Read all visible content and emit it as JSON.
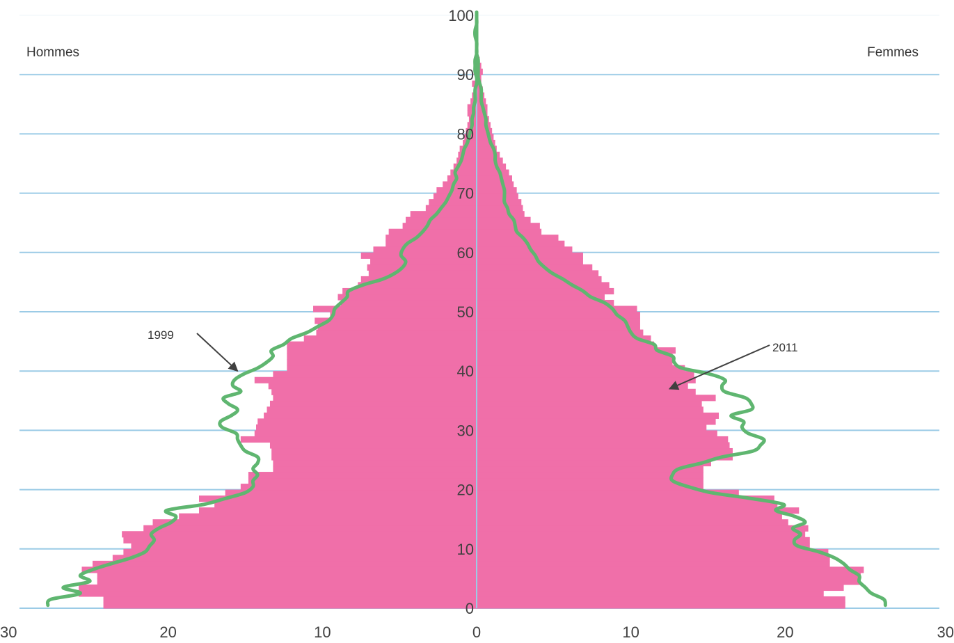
{
  "chart_data": {
    "type": "population-pyramid",
    "left_label": "Hommes",
    "right_label": "Femmes",
    "x_range": [
      -30,
      30
    ],
    "y_range": [
      0,
      100
    ],
    "x_ticks": [
      {
        "value": -30,
        "label": "30"
      },
      {
        "value": -20,
        "label": "20"
      },
      {
        "value": -10,
        "label": "10"
      },
      {
        "value": 0,
        "label": "0"
      },
      {
        "value": 10,
        "label": "10"
      },
      {
        "value": 20,
        "label": "20"
      },
      {
        "value": 30,
        "label": "30"
      }
    ],
    "y_ticks": [
      {
        "value": 0,
        "label": "0"
      },
      {
        "value": 10,
        "label": "10"
      },
      {
        "value": 20,
        "label": "20"
      },
      {
        "value": 30,
        "label": "30"
      },
      {
        "value": 40,
        "label": "40"
      },
      {
        "value": 50,
        "label": "50"
      },
      {
        "value": 60,
        "label": "60"
      },
      {
        "value": 70,
        "label": "70"
      },
      {
        "value": 80,
        "label": "80"
      },
      {
        "value": 90,
        "label": "90"
      },
      {
        "value": 100,
        "label": "100"
      }
    ],
    "grid": true,
    "annotations": [
      {
        "text": "1999",
        "arrow_to_age": 40,
        "arrow_to_value": -15.5
      },
      {
        "text": "2011",
        "arrow_to_age": 37,
        "arrow_to_value": 12.5
      }
    ],
    "bars_2011": {
      "name": "2011",
      "color": "#f06fa9",
      "ages": [
        0,
        1,
        2,
        3,
        4,
        5,
        6,
        7,
        8,
        9,
        10,
        11,
        12,
        13,
        14,
        15,
        16,
        17,
        18,
        19,
        20,
        21,
        22,
        23,
        24,
        25,
        26,
        27,
        28,
        29,
        30,
        31,
        32,
        33,
        34,
        35,
        36,
        37,
        38,
        39,
        40,
        41,
        42,
        43,
        44,
        45,
        46,
        47,
        48,
        49,
        50,
        51,
        52,
        53,
        54,
        55,
        56,
        57,
        58,
        59,
        60,
        61,
        62,
        63,
        64,
        65,
        66,
        67,
        68,
        69,
        70,
        71,
        72,
        73,
        74,
        75,
        76,
        77,
        78,
        79,
        80,
        81,
        82,
        83,
        84,
        85,
        86,
        87,
        88,
        89,
        90,
        91,
        92,
        93,
        94,
        95,
        96,
        97,
        98,
        99,
        100
      ],
      "hommes": [
        24.2,
        24.2,
        25.8,
        25.8,
        24.6,
        24.6,
        25.6,
        24.9,
        23.6,
        22.9,
        22.4,
        22.9,
        23.0,
        21.6,
        21.0,
        19.3,
        18.0,
        17.0,
        18.0,
        16.3,
        15.3,
        14.8,
        14.8,
        13.2,
        13.2,
        13.3,
        13.3,
        13.4,
        15.3,
        14.4,
        14.3,
        14.2,
        13.8,
        13.6,
        13.4,
        13.2,
        13.3,
        13.5,
        14.4,
        13.2,
        12.3,
        12.3,
        12.3,
        12.3,
        12.3,
        11.2,
        10.4,
        10.3,
        10.5,
        9.5,
        10.6,
        8.8,
        9.0,
        8.7,
        7.7,
        7.5,
        7.0,
        7.1,
        6.9,
        7.5,
        6.7,
        5.9,
        5.9,
        5.7,
        4.8,
        4.6,
        4.3,
        3.3,
        3.1,
        2.8,
        2.6,
        2.2,
        1.9,
        1.7,
        1.5,
        1.3,
        1.2,
        1.1,
        0.9,
        0.8,
        0.7,
        0.6,
        0.5,
        0.6,
        0.6,
        0.4,
        0.3,
        0.2,
        0.3,
        0.1,
        0.2,
        0.1,
        0.1,
        0.1,
        0.0,
        0.0,
        0.0,
        0.0,
        0.0,
        0.0,
        0.0
      ],
      "femmes": [
        23.9,
        23.9,
        22.5,
        23.8,
        24.9,
        24.9,
        25.1,
        22.9,
        22.9,
        22.8,
        21.6,
        21.6,
        21.3,
        21.5,
        20.2,
        19.8,
        20.9,
        19.5,
        19.3,
        17.0,
        14.7,
        14.7,
        14.7,
        14.7,
        15.2,
        16.6,
        16.6,
        16.4,
        16.3,
        15.6,
        14.9,
        15.5,
        15.7,
        14.7,
        14.6,
        15.5,
        14.2,
        13.7,
        14.2,
        14.1,
        13.5,
        12.7,
        12.7,
        12.9,
        11.5,
        11.3,
        10.8,
        10.6,
        10.6,
        10.6,
        10.4,
        8.9,
        8.3,
        8.9,
        8.6,
        8.1,
        7.9,
        7.5,
        6.9,
        6.9,
        6.2,
        5.7,
        5.3,
        4.2,
        4.1,
        3.5,
        3.1,
        3.0,
        2.9,
        2.7,
        2.6,
        2.4,
        2.3,
        2.1,
        1.9,
        1.7,
        1.5,
        1.3,
        1.2,
        1.1,
        1.0,
        0.9,
        0.8,
        0.7,
        0.7,
        0.6,
        0.5,
        0.4,
        0.3,
        0.3,
        0.4,
        0.3,
        0.2,
        0.1,
        0.1,
        0.0,
        0.0,
        0.0,
        0.0,
        0.0,
        0.0
      ]
    },
    "line_1999": {
      "name": "1999",
      "color": "#5fb670",
      "ages": [
        0,
        1,
        2,
        3,
        4,
        5,
        6,
        7,
        8,
        9,
        10,
        11,
        12,
        13,
        14,
        15,
        16,
        17,
        18,
        19,
        20,
        21,
        22,
        23,
        24,
        25,
        26,
        27,
        28,
        29,
        30,
        31,
        32,
        33,
        34,
        35,
        36,
        37,
        38,
        39,
        40,
        41,
        42,
        43,
        44,
        45,
        46,
        47,
        48,
        49,
        50,
        51,
        52,
        53,
        54,
        55,
        56,
        57,
        58,
        59,
        60,
        61,
        62,
        63,
        64,
        65,
        66,
        67,
        68,
        69,
        70,
        71,
        72,
        73,
        74,
        75,
        76,
        77,
        78,
        79,
        80,
        81,
        82,
        83,
        84,
        85,
        86,
        87,
        88,
        89,
        90,
        91,
        92,
        93,
        94,
        95,
        96,
        97,
        98,
        99,
        100
      ],
      "hommes": [
        27.8,
        27.6,
        25.7,
        26.8,
        25.1,
        25.7,
        24.9,
        23.7,
        22.4,
        21.5,
        21.2,
        20.9,
        21.1,
        20.6,
        19.8,
        19.5,
        20.1,
        17.7,
        16.3,
        15.0,
        14.5,
        14.5,
        14.2,
        14.5,
        14.2,
        14.2,
        15.0,
        15.3,
        15.5,
        15.6,
        16.5,
        16.6,
        15.9,
        15.5,
        16.1,
        16.4,
        15.3,
        15.8,
        15.7,
        15.1,
        14.2,
        13.6,
        13.2,
        13.3,
        12.5,
        12.0,
        11.0,
        10.3,
        9.6,
        9.3,
        9.2,
        8.8,
        8.4,
        8.3,
        7.4,
        6.1,
        5.3,
        4.8,
        4.6,
        4.9,
        4.8,
        4.5,
        3.9,
        3.5,
        3.2,
        3.0,
        2.6,
        2.3,
        2.0,
        1.8,
        1.6,
        1.5,
        1.3,
        1.4,
        1.2,
        1.0,
        0.9,
        0.8,
        0.6,
        0.5,
        0.4,
        0.3,
        0.3,
        0.2,
        0.2,
        0.1,
        0.1,
        0.1,
        0.0,
        0.0,
        0.1,
        0.1,
        0.1,
        0.0,
        0.0,
        0.0,
        0.1,
        0.1,
        0.0,
        0.0,
        0.0
      ],
      "femmes": [
        26.5,
        26.4,
        25.6,
        25.2,
        24.8,
        24.8,
        24.2,
        23.8,
        23.2,
        22.2,
        20.8,
        20.6,
        21.0,
        20.5,
        21.3,
        20.6,
        19.4,
        19.9,
        17.8,
        15.2,
        13.7,
        12.7,
        12.7,
        13.1,
        14.6,
        15.9,
        17.9,
        18.4,
        18.6,
        17.6,
        17.2,
        17.3,
        16.5,
        17.8,
        17.8,
        17.4,
        16.1,
        15.9,
        16.1,
        15.1,
        13.3,
        12.8,
        12.7,
        11.7,
        11.5,
        10.4,
        10.0,
        9.8,
        9.6,
        9.1,
        8.8,
        8.3,
        7.4,
        6.9,
        6.2,
        5.6,
        4.9,
        4.4,
        4.0,
        3.8,
        3.5,
        3.3,
        3.0,
        2.6,
        2.5,
        2.4,
        2.1,
        2.0,
        1.8,
        1.8,
        1.8,
        1.7,
        1.6,
        1.5,
        1.3,
        1.2,
        1.2,
        1.1,
        0.9,
        0.8,
        0.7,
        0.6,
        0.6,
        0.5,
        0.4,
        0.3,
        0.3,
        0.3,
        0.2,
        0.1,
        0.1,
        0.1,
        0.1,
        0.0,
        0.0,
        0.0,
        0.0,
        0.0,
        0.0,
        0.0,
        0.0
      ]
    }
  }
}
